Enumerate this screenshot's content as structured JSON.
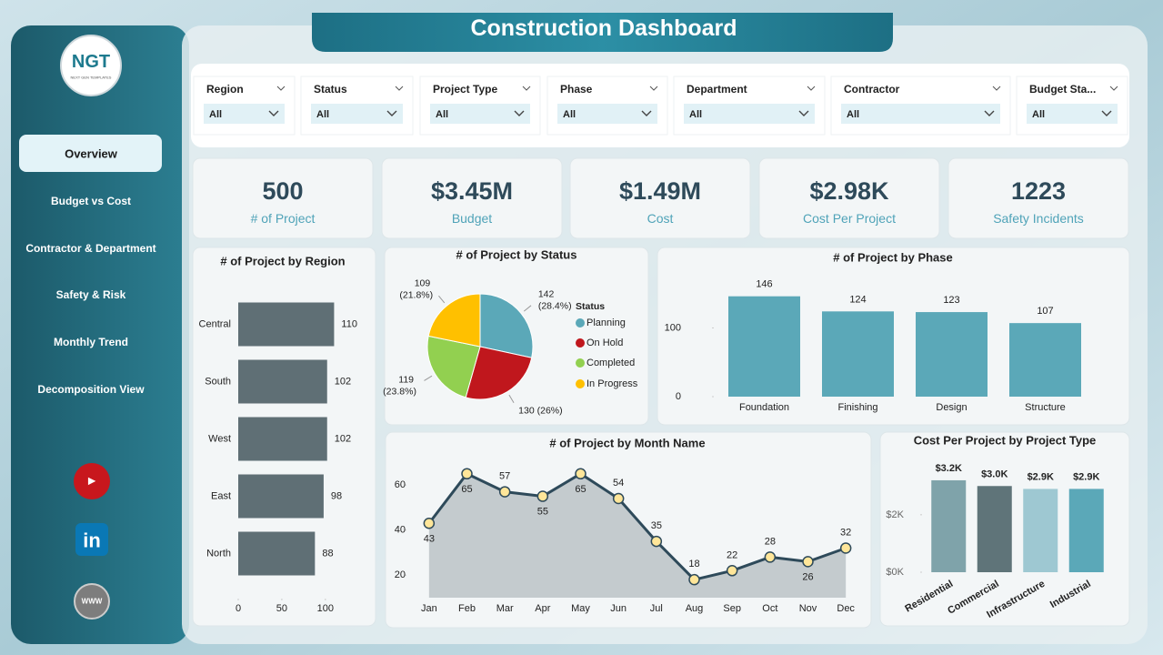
{
  "header": {
    "title": "Construction Dashboard",
    "logo": "NGT",
    "logo_sub": "NEXT GEN TEMPLATES"
  },
  "nav": [
    "Overview",
    "Budget vs Cost",
    "Contractor & Department",
    "Safety & Risk",
    "Monthly Trend",
    "Decomposition View"
  ],
  "filters": [
    {
      "label": "Region",
      "value": "All"
    },
    {
      "label": "Status",
      "value": "All"
    },
    {
      "label": "Project Type",
      "value": "All"
    },
    {
      "label": "Phase",
      "value": "All"
    },
    {
      "label": "Department",
      "value": "All"
    },
    {
      "label": "Contractor",
      "value": "All"
    },
    {
      "label": "Budget Sta...",
      "value": "All"
    }
  ],
  "kpis": [
    {
      "value": "500",
      "label": "# of Project"
    },
    {
      "value": "$3.45M",
      "label": "Budget"
    },
    {
      "value": "$1.49M",
      "label": "Cost"
    },
    {
      "value": "$2.98K",
      "label": "Cost Per Project"
    },
    {
      "value": "1223",
      "label": "Safety Incidents"
    }
  ],
  "chart_data": [
    {
      "type": "bar",
      "orientation": "horizontal",
      "title": "# of Project by Region",
      "categories": [
        "Central",
        "South",
        "West",
        "East",
        "North"
      ],
      "values": [
        110,
        102,
        102,
        98,
        88
      ],
      "color": "#5f6f75",
      "xlim": [
        0,
        120
      ],
      "xticks": [
        0,
        50,
        100
      ]
    },
    {
      "type": "pie",
      "title": "# of Project by Status",
      "legend_title": "Status",
      "categories": [
        "Planning",
        "On Hold",
        "Completed",
        "In Progress"
      ],
      "values": [
        142,
        130,
        119,
        109
      ],
      "value_labels": [
        "142 (28.4%)",
        "130 (26%)",
        "119 (23.8%)",
        "109 (21.8%)"
      ],
      "colors": [
        "#5ba8b8",
        "#c0171d",
        "#92d050",
        "#ffc000"
      ]
    },
    {
      "type": "bar",
      "title": "# of Project by Phase",
      "categories": [
        "Foundation",
        "Finishing",
        "Design",
        "Structure"
      ],
      "values": [
        146,
        124,
        123,
        107
      ],
      "color": "#5ba8b8",
      "ylim": [
        0,
        180
      ],
      "yticks": [
        0,
        100
      ]
    },
    {
      "type": "line",
      "title": "# of Project by Month Name",
      "categories": [
        "Jan",
        "Feb",
        "Mar",
        "Apr",
        "May",
        "Jun",
        "Jul",
        "Aug",
        "Sep",
        "Oct",
        "Nov",
        "Dec"
      ],
      "values": [
        43,
        65,
        57,
        55,
        65,
        54,
        35,
        18,
        22,
        28,
        26,
        32
      ],
      "color": "#2e4a5a",
      "area_color": "#b4bcc0",
      "marker_color": "#ffe699",
      "ylim": [
        10,
        75
      ],
      "yticks": [
        20,
        40,
        60
      ]
    },
    {
      "type": "bar",
      "title": "Cost Per Project by Project Type",
      "categories": [
        "Residential",
        "Commercial",
        "Infrastructure",
        "Industrial"
      ],
      "values": [
        3200,
        3000,
        2900,
        2900
      ],
      "value_labels": [
        "$3.2K",
        "$3.0K",
        "$2.9K",
        "$2.9K"
      ],
      "colors": [
        "#7fa3aa",
        "#5f7479",
        "#9ec8d2",
        "#5ba8b8"
      ],
      "ylim": [
        0,
        3800
      ],
      "yticks": [
        {
          "value": 0,
          "label": "$0K"
        },
        {
          "value": 2000,
          "label": "$2K"
        }
      ]
    }
  ]
}
